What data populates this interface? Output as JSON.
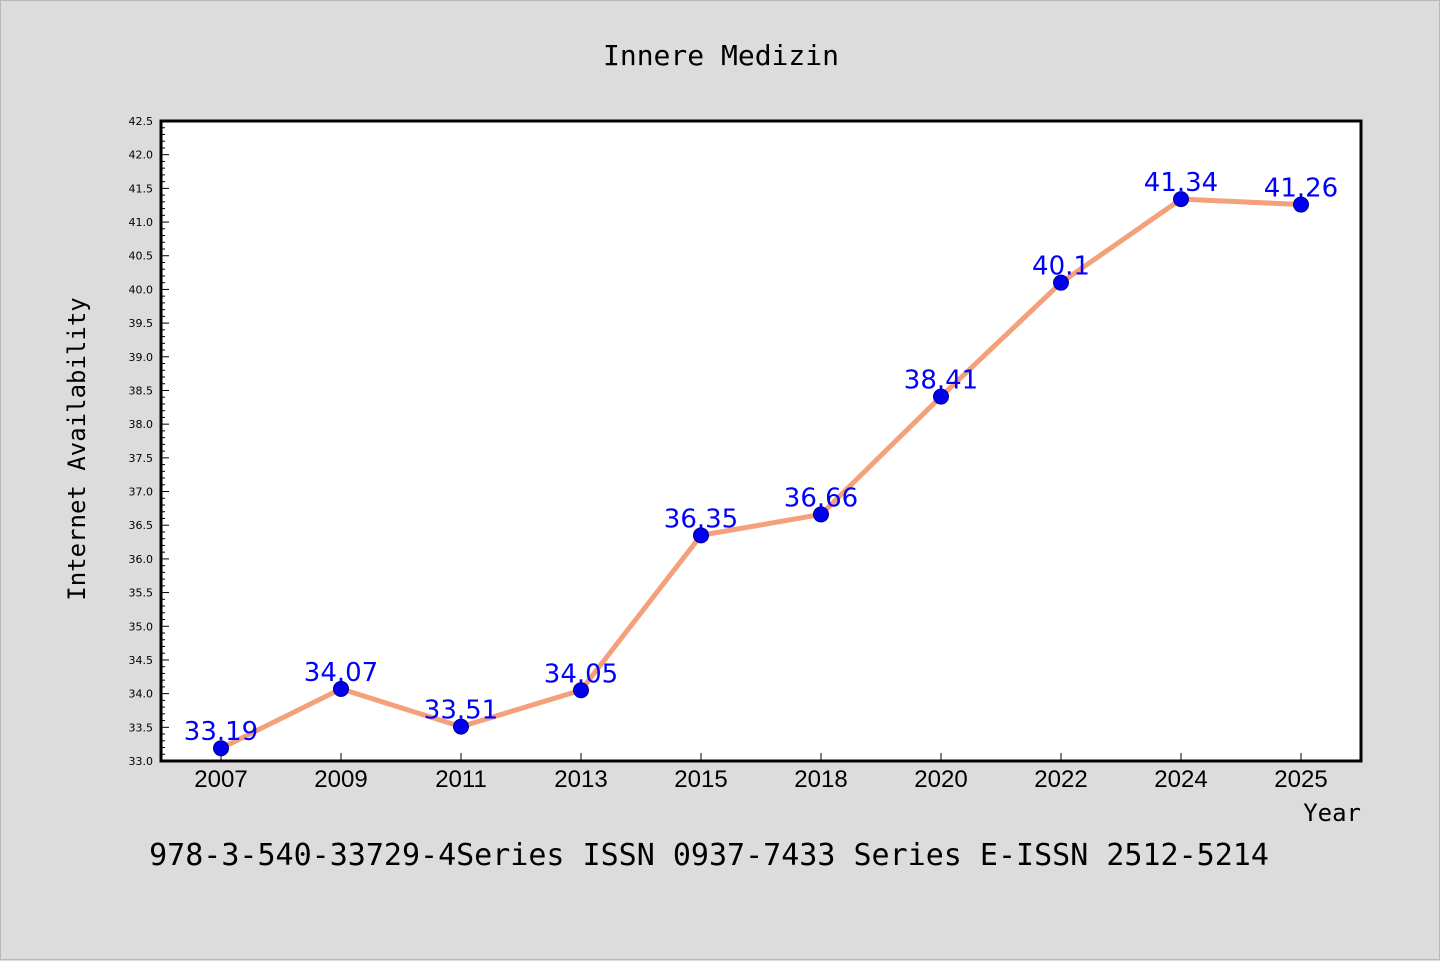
{
  "chart_data": {
    "type": "line",
    "title": "Innere Medizin",
    "xlabel": "Year",
    "ylabel": "Internet Availability",
    "categories": [
      "2007",
      "2009",
      "2011",
      "2013",
      "2015",
      "2018",
      "2020",
      "2022",
      "2024",
      "2025"
    ],
    "series": [
      {
        "values": [
          33.19,
          34.07,
          33.51,
          34.05,
          36.35,
          36.66,
          38.41,
          40.1,
          41.34,
          41.26
        ]
      }
    ],
    "data_labels": [
      "33.19",
      "34.07",
      "33.51",
      "34.05",
      "36.35",
      "36.66",
      "38.41",
      "40.1",
      "41.34",
      "41.26"
    ],
    "ylim": [
      33.0,
      42.5
    ],
    "yticks": [
      "33.0",
      "33.5",
      "34.0",
      "34.5",
      "35.0",
      "35.5",
      "36.0",
      "36.5",
      "37.0",
      "37.5",
      "38.0",
      "38.5",
      "39.0",
      "39.5",
      "40.0",
      "40.5",
      "41.0",
      "41.5",
      "42.0",
      "42.5"
    ],
    "grid": false,
    "footer": "978-3-540-33729-4Series ISSN 0937-7433 Series E-ISSN 2512-5214",
    "colors": {
      "background": "#dcdcdc",
      "plot_background": "#ffffff",
      "line": "#f4a07a",
      "marker": "#0000ee",
      "data_label": "#0000ff"
    }
  }
}
